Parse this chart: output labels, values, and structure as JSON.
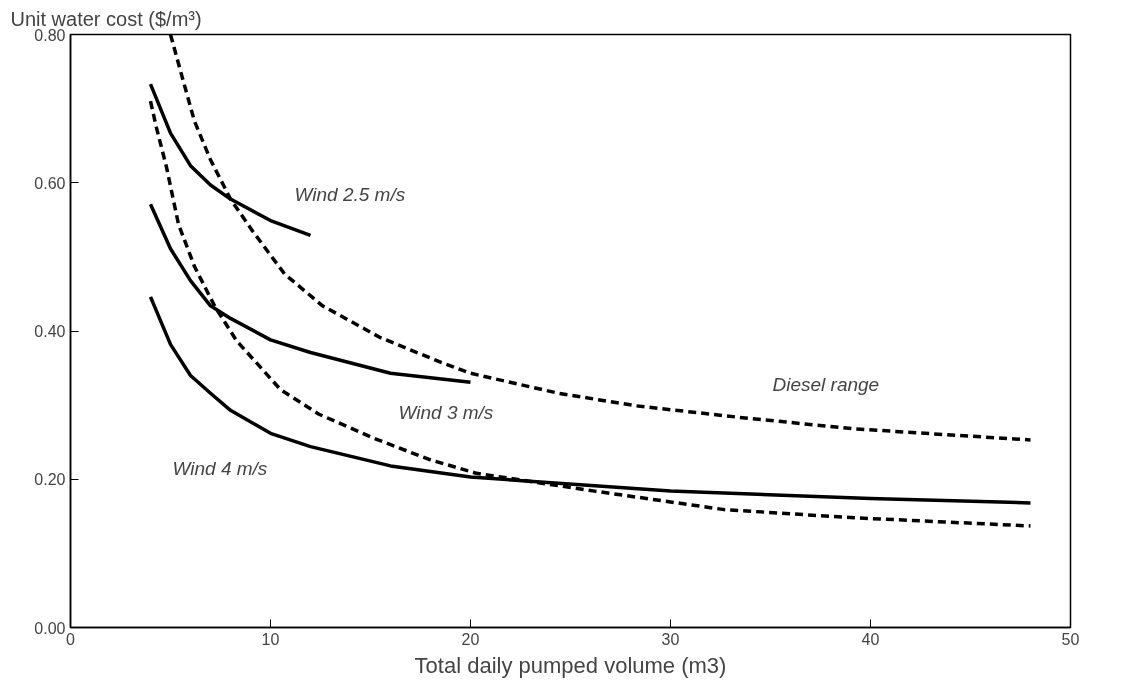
{
  "chart_data": {
    "type": "line",
    "ylabel": "Unit water cost ($/m³)",
    "xlabel": "Total daily pumped volume (m3)",
    "xlim": [
      0,
      50
    ],
    "xticks": [
      0,
      10,
      20,
      30,
      40,
      50
    ],
    "ylim": [
      0,
      0.8
    ],
    "yticks": [
      {
        "value": 0,
        "label": "0.00"
      },
      {
        "value": 0.2,
        "label": "0.20"
      },
      {
        "value": 0.4,
        "label": "0.40"
      },
      {
        "value": 0.6,
        "label": "0.60"
      },
      {
        "value": 0.8,
        "label": "0.80"
      }
    ],
    "grid": false,
    "legend": false,
    "marker": "none",
    "series": [
      {
        "name": "Wind 2.5 m/s",
        "color": "#000000",
        "line_style": "solid",
        "x": [
          4,
          5,
          6,
          7,
          8,
          10,
          12
        ],
        "values": [
          0.733,
          0.667,
          0.623,
          0.597,
          0.578,
          0.549,
          0.529
        ]
      },
      {
        "name": "Wind 3 m/s",
        "color": "#000000",
        "line_style": "solid",
        "x": [
          4,
          5,
          6,
          7,
          8,
          10,
          12,
          16,
          20
        ],
        "values": [
          0.571,
          0.511,
          0.468,
          0.434,
          0.417,
          0.388,
          0.371,
          0.343,
          0.331
        ]
      },
      {
        "name": "Wind 4 m/s",
        "color": "#000000",
        "line_style": "solid",
        "x": [
          4,
          5,
          6,
          7,
          8,
          10,
          12,
          16,
          20,
          30,
          40,
          48
        ],
        "values": [
          0.446,
          0.382,
          0.34,
          0.316,
          0.293,
          0.262,
          0.244,
          0.218,
          0.203,
          0.184,
          0.174,
          0.168
        ]
      },
      {
        "name": "Diesel range",
        "color": "#000000",
        "line_style": "dashed",
        "x": [
          5,
          5.6,
          6.2,
          7,
          8,
          9.1,
          10.7,
          12.6,
          15.5,
          18.6,
          20,
          24.4,
          28.3,
          33.6,
          39.2,
          48
        ],
        "values": [
          0.8,
          0.741,
          0.683,
          0.631,
          0.578,
          0.535,
          0.477,
          0.434,
          0.391,
          0.357,
          0.343,
          0.316,
          0.299,
          0.283,
          0.268,
          0.253
        ]
      },
      {
        "color": "#000000",
        "line_style": "dashed",
        "x": [
          4,
          4.3,
          4.8,
          5.4,
          6.2,
          7.2,
          8.3,
          10.5,
          12.4,
          15.2,
          17.9,
          20.3,
          26.2,
          32.7,
          39.2,
          48
        ],
        "values": [
          0.71,
          0.674,
          0.621,
          0.544,
          0.487,
          0.434,
          0.387,
          0.321,
          0.288,
          0.255,
          0.227,
          0.208,
          0.184,
          0.159,
          0.148,
          0.137
        ]
      }
    ]
  }
}
